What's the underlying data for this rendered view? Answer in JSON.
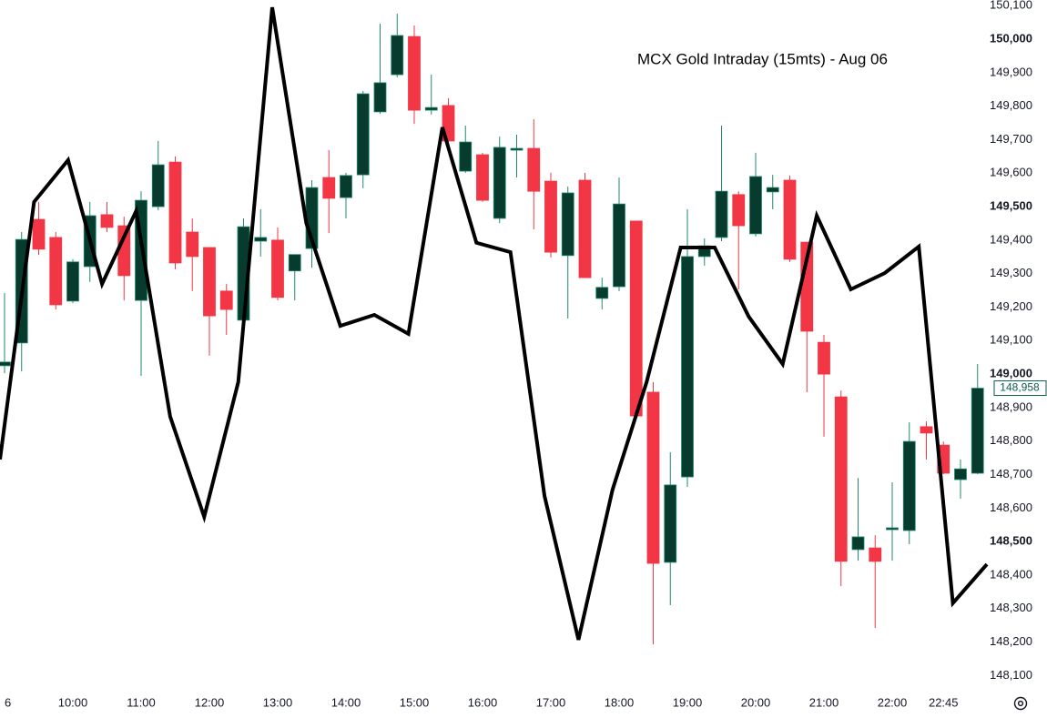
{
  "chart_data": {
    "type": "candlestick",
    "title": "MCX Gold Intraday (15mts) - Aug 06",
    "categories": [
      "6",
      null,
      null,
      null,
      "10:00",
      null,
      null,
      null,
      "11:00",
      null,
      null,
      null,
      "12:00",
      null,
      null,
      null,
      "13:00",
      null,
      null,
      null,
      "14:00",
      null,
      null,
      null,
      "15:00",
      null,
      null,
      null,
      "16:00",
      null,
      null,
      null,
      "17:00",
      null,
      null,
      null,
      "18:00",
      null,
      null,
      null,
      "19:00",
      null,
      null,
      null,
      "20:00",
      null,
      null,
      null,
      "21:00",
      null,
      null,
      null,
      "22:00",
      null,
      null,
      "22:45",
      null,
      null
    ],
    "open": [
      149025,
      149093,
      149462,
      149408,
      149218,
      149321,
      149476,
      149443,
      149220,
      149500,
      149633,
      149424,
      149378,
      149248,
      149161,
      149397,
      149400,
      149308,
      149375,
      149587,
      149527,
      149595,
      149783,
      149894,
      150008,
      149788,
      149802,
      149606,
      149655,
      149465,
      149669,
      149674,
      149576,
      149354,
      149579,
      149226,
      149261,
      149457,
      148946,
      148438,
      148693,
      149351,
      149408,
      149536,
      149419,
      149544,
      149579,
      149394,
      149095,
      148932,
      148476,
      148481,
      148536,
      148533,
      148843,
      148788,
      148685,
      148704
    ],
    "high": [
      149242,
      149424,
      149514,
      149424,
      149343,
      149514,
      149514,
      149470,
      149546,
      149696,
      149650,
      149465,
      149378,
      149269,
      149465,
      149492,
      149438,
      149357,
      149579,
      149669,
      149601,
      149845,
      150046,
      150076,
      150041,
      149894,
      149824,
      149742,
      149661,
      149709,
      149715,
      149761,
      149601,
      149560,
      149601,
      149288,
      149587,
      149457,
      148976,
      148767,
      149492,
      149405,
      149742,
      149546,
      149661,
      149595,
      149593,
      149394,
      149117,
      148951,
      148690,
      148519,
      148677,
      148856,
      148859,
      148799,
      148745,
      149030
    ],
    "low": [
      149003,
      149008,
      149356,
      149193,
      149212,
      149275,
      149424,
      149220,
      148995,
      149489,
      149313,
      149248,
      149055,
      149117,
      149153,
      149351,
      149220,
      149220,
      149318,
      149421,
      149465,
      149555,
      149777,
      149886,
      149747,
      149775,
      149682,
      149601,
      149514,
      149451,
      149587,
      149432,
      149348,
      149166,
      149288,
      149193,
      149248,
      148867,
      148193,
      148310,
      148663,
      149324,
      149397,
      149253,
      149411,
      149492,
      149335,
      148946,
      148813,
      148367,
      148443,
      148242,
      148443,
      148492,
      148745,
      148701,
      148628,
      148701
    ],
    "close": [
      149036,
      149402,
      149373,
      149207,
      149335,
      149473,
      149438,
      149294,
      149519,
      149625,
      149332,
      149351,
      149174,
      149193,
      149440,
      149408,
      149229,
      149357,
      149557,
      149525,
      149593,
      149837,
      149870,
      150011,
      149788,
      149796,
      149696,
      149693,
      149519,
      149677,
      149674,
      149546,
      149364,
      149541,
      149288,
      149259,
      149508,
      148875,
      148435,
      148669,
      149351,
      149383,
      149546,
      149443,
      149590,
      149557,
      149343,
      149128,
      149000,
      148441,
      148514,
      148441,
      148541,
      148799,
      148824,
      148704,
      148717,
      148958
    ],
    "up_color": "#073b2e",
    "down_color": "#f23645",
    "line": {
      "color": "#000000",
      "values": [
        148745,
        149514,
        149639,
        149269,
        149487,
        148873,
        148574,
        148976,
        150095,
        149451,
        149144,
        149177,
        149120,
        149737,
        149392,
        149364,
        148636,
        148207,
        148655,
        148976,
        149378,
        149378,
        149172,
        149030,
        149473,
        149253,
        149302,
        149381,
        148316,
        148432
      ]
    },
    "last_price": {
      "value": 148958,
      "label": "148,958"
    },
    "ylim": [
      148052,
      150117
    ],
    "yticks": [
      {
        "value": 148100,
        "label": "148,100"
      },
      {
        "value": 148200,
        "label": "148,200"
      },
      {
        "value": 148300,
        "label": "148,300"
      },
      {
        "value": 148400,
        "label": "148,400"
      },
      {
        "value": 148500,
        "label": "148,500"
      },
      {
        "value": 148600,
        "label": "148,600"
      },
      {
        "value": 148700,
        "label": "148,700"
      },
      {
        "value": 148800,
        "label": "148,800"
      },
      {
        "value": 148900,
        "label": "148,900"
      },
      {
        "value": 149000,
        "label": "149,000"
      },
      {
        "value": 149100,
        "label": "149,100"
      },
      {
        "value": 149200,
        "label": "149,200"
      },
      {
        "value": 149300,
        "label": "149,300"
      },
      {
        "value": 149400,
        "label": "149,400"
      },
      {
        "value": 149500,
        "label": "149,500"
      },
      {
        "value": 149600,
        "label": "149,600"
      },
      {
        "value": 149700,
        "label": "149,700"
      },
      {
        "value": 149800,
        "label": "149,800"
      },
      {
        "value": 149900,
        "label": "149,900"
      },
      {
        "value": 150000,
        "label": "150,000"
      },
      {
        "value": 150100,
        "label": "150,100"
      }
    ],
    "grid": false
  }
}
